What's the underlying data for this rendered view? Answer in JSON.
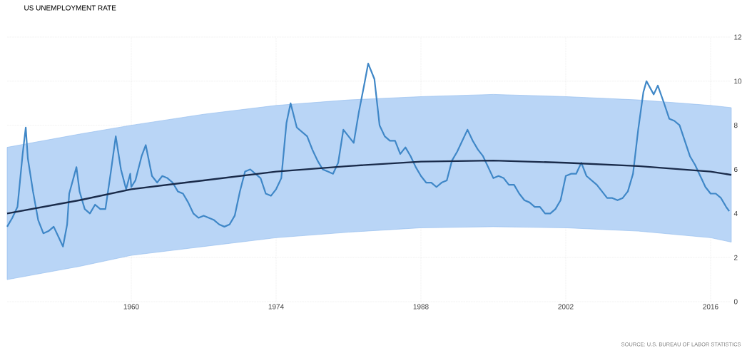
{
  "chart_data": {
    "type": "line",
    "title": "US UNEMPLOYMENT RATE",
    "annotations": [
      "SOURCE: U.S. BUREAU OF LABOR STATISTICS"
    ],
    "xlim": [
      1948,
      2018
    ],
    "xticks": [
      1960,
      1974,
      1988,
      2002,
      2016
    ],
    "ylim": [
      0,
      12
    ],
    "yticks": [
      0,
      2,
      4,
      6,
      8,
      10,
      12
    ],
    "grid": true,
    "marker": "none",
    "line_style": "solid",
    "series": [
      {
        "color": "#3f87c7",
        "x": [
          1948.0,
          1948.5,
          1949.0,
          1949.5,
          1949.8,
          1950.0,
          1950.5,
          1951.0,
          1951.5,
          1952.0,
          1952.5,
          1953.0,
          1953.4,
          1953.8,
          1954.0,
          1954.7,
          1955.0,
          1955.5,
          1956.0,
          1956.5,
          1957.0,
          1957.5,
          1958.0,
          1958.5,
          1959.0,
          1959.5,
          1959.9,
          1960.0,
          1960.4,
          1961.0,
          1961.4,
          1962.0,
          1962.5,
          1963.0,
          1963.5,
          1964.0,
          1964.5,
          1965.0,
          1965.5,
          1966.0,
          1966.5,
          1967.0,
          1967.5,
          1968.0,
          1968.5,
          1969.0,
          1969.5,
          1970.0,
          1970.5,
          1971.0,
          1971.5,
          1972.0,
          1972.5,
          1973.0,
          1973.5,
          1974.0,
          1974.5,
          1975.0,
          1975.4,
          1976.0,
          1976.5,
          1977.0,
          1977.5,
          1978.0,
          1978.5,
          1979.0,
          1979.5,
          1980.0,
          1980.5,
          1981.0,
          1981.5,
          1982.0,
          1982.5,
          1982.9,
          1983.5,
          1984.0,
          1984.5,
          1985.0,
          1985.5,
          1986.0,
          1986.5,
          1987.0,
          1987.5,
          1988.0,
          1988.5,
          1989.0,
          1989.5,
          1990.0,
          1990.5,
          1991.0,
          1991.5,
          1992.0,
          1992.5,
          1993.0,
          1993.5,
          1994.0,
          1994.5,
          1995.0,
          1995.5,
          1996.0,
          1996.5,
          1997.0,
          1997.5,
          1998.0,
          1998.5,
          1999.0,
          1999.5,
          2000.0,
          2000.5,
          2001.0,
          2001.5,
          2002.0,
          2002.5,
          2003.0,
          2003.5,
          2004.0,
          2004.5,
          2005.0,
          2005.5,
          2006.0,
          2006.5,
          2007.0,
          2007.5,
          2008.0,
          2008.5,
          2009.0,
          2009.5,
          2009.8,
          2010.5,
          2010.9,
          2011.5,
          2012.0,
          2012.5,
          2013.0,
          2013.5,
          2014.0,
          2014.5,
          2015.0,
          2015.5,
          2016.0,
          2016.5,
          2017.0,
          2017.5,
          2017.8
        ],
        "values": [
          3.4,
          3.8,
          4.3,
          6.7,
          7.9,
          6.5,
          5.0,
          3.7,
          3.1,
          3.2,
          3.4,
          2.9,
          2.5,
          3.5,
          4.9,
          6.1,
          5.0,
          4.2,
          4.0,
          4.4,
          4.2,
          4.2,
          5.8,
          7.5,
          6.0,
          5.1,
          5.8,
          5.2,
          5.5,
          6.6,
          7.1,
          5.7,
          5.4,
          5.7,
          5.6,
          5.4,
          5.0,
          4.9,
          4.5,
          4.0,
          3.8,
          3.9,
          3.8,
          3.7,
          3.5,
          3.4,
          3.5,
          3.9,
          5.0,
          5.9,
          6.0,
          5.8,
          5.6,
          4.9,
          4.8,
          5.1,
          5.6,
          8.1,
          9.0,
          7.9,
          7.7,
          7.5,
          6.9,
          6.4,
          6.0,
          5.9,
          5.8,
          6.3,
          7.8,
          7.5,
          7.2,
          8.6,
          9.8,
          10.8,
          10.1,
          8.0,
          7.5,
          7.3,
          7.3,
          6.7,
          7.0,
          6.6,
          6.1,
          5.7,
          5.4,
          5.4,
          5.2,
          5.4,
          5.5,
          6.4,
          6.8,
          7.3,
          7.8,
          7.3,
          6.9,
          6.6,
          6.1,
          5.6,
          5.7,
          5.6,
          5.3,
          5.3,
          4.9,
          4.6,
          4.5,
          4.3,
          4.3,
          4.0,
          4.0,
          4.2,
          4.6,
          5.7,
          5.8,
          5.8,
          6.3,
          5.7,
          5.5,
          5.3,
          5.0,
          4.7,
          4.7,
          4.6,
          4.7,
          5.0,
          5.8,
          7.8,
          9.5,
          10.0,
          9.4,
          9.8,
          9.0,
          8.3,
          8.2,
          8.0,
          7.3,
          6.6,
          6.2,
          5.7,
          5.2,
          4.9,
          4.9,
          4.7,
          4.3,
          4.1
        ]
      },
      {
        "color": "#1a2b4a",
        "x": [
          1948,
          1955,
          1960,
          1967,
          1974,
          1981,
          1988,
          1995,
          2002,
          2009,
          2016,
          2018
        ],
        "values": [
          4.0,
          4.6,
          5.1,
          5.5,
          5.9,
          6.15,
          6.35,
          6.4,
          6.3,
          6.15,
          5.9,
          5.75
        ],
        "lower": [
          1.0,
          1.6,
          2.1,
          2.5,
          2.9,
          3.15,
          3.35,
          3.4,
          3.35,
          3.2,
          2.9,
          2.7
        ],
        "upper": [
          7.0,
          7.6,
          8.0,
          8.5,
          8.9,
          9.15,
          9.3,
          9.4,
          9.3,
          9.15,
          8.9,
          8.8
        ]
      }
    ]
  }
}
